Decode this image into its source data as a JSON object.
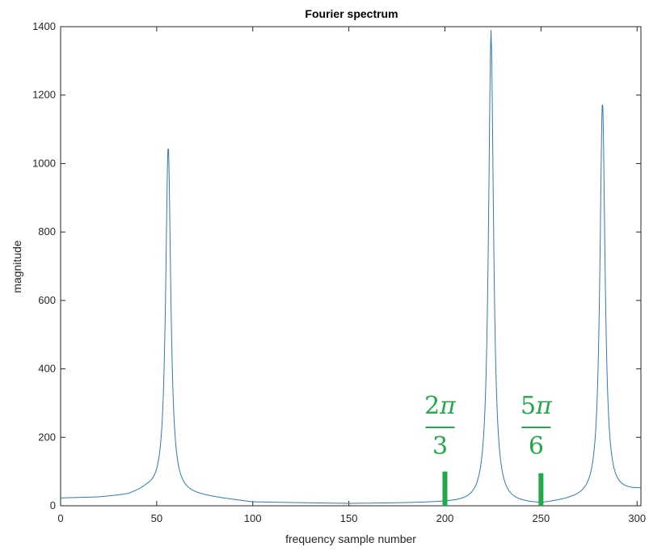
{
  "chart_data": {
    "type": "line",
    "title": "Fourier spectrum",
    "xlabel": "frequency sample number",
    "ylabel": "magnitude",
    "xlim": [
      0,
      302
    ],
    "ylim": [
      0,
      1400
    ],
    "xticks": [
      0,
      50,
      100,
      150,
      200,
      250,
      300
    ],
    "yticks": [
      0,
      200,
      400,
      600,
      800,
      1000,
      1200,
      1400
    ],
    "grid": false,
    "line_color": "#2b7bb2",
    "series": [
      {
        "peaks": [
          {
            "x": 56,
            "y": 1030
          },
          {
            "x": 224,
            "y": 1390
          },
          {
            "x": 282,
            "y": 1170
          }
        ],
        "baseline": [
          {
            "x": 0,
            "y": 22
          },
          {
            "x": 20,
            "y": 24
          },
          {
            "x": 35,
            "y": 30
          },
          {
            "x": 45,
            "y": 45
          },
          {
            "x": 100,
            "y": 10
          },
          {
            "x": 150,
            "y": 6
          },
          {
            "x": 200,
            "y": 8
          },
          {
            "x": 250,
            "y": 2
          },
          {
            "x": 302,
            "y": 45
          }
        ]
      }
    ],
    "annotations": [
      {
        "x": 200,
        "top_y": 100,
        "numerator": "2",
        "denominator": "3",
        "symbol": "π",
        "color": "#21a84a"
      },
      {
        "x": 250,
        "top_y": 95,
        "numerator": "5",
        "denominator": "6",
        "symbol": "π",
        "color": "#21a84a"
      }
    ]
  }
}
